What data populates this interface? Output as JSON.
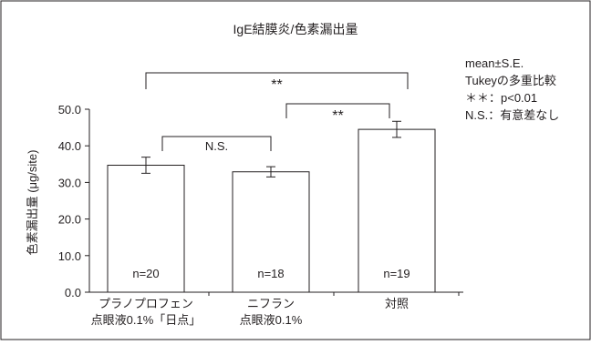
{
  "chart_data": {
    "type": "bar",
    "title": "IgE結膜炎/色素漏出量",
    "ylabel": "色素漏出量 (μg/site)",
    "xlabel": "",
    "ylim": [
      0,
      50
    ],
    "yticks": [
      0,
      10,
      20,
      30,
      40,
      50
    ],
    "ytick_labels": [
      "0.0",
      "10.0",
      "20.0",
      "30.0",
      "40.0",
      "50.0"
    ],
    "grid": false,
    "categories": [
      [
        "プラノプロフェン",
        "点眼液0.1%「日点」"
      ],
      [
        "ニフラン",
        "点眼液0.1%"
      ],
      [
        "対照"
      ]
    ],
    "values": [
      34.7,
      32.9,
      44.5
    ],
    "errors": [
      2.2,
      1.4,
      2.2
    ],
    "n_labels": [
      "n=20",
      "n=18",
      "n=19"
    ],
    "bar_fill": "#ffffff",
    "bar_stroke": "#231f20",
    "comparisons": [
      {
        "from": 0,
        "to": 1,
        "label": "N.S."
      },
      {
        "from": 1,
        "to": 2,
        "label": "**"
      },
      {
        "from": 0,
        "to": 2,
        "label": "**"
      }
    ],
    "legend_notes": [
      "mean±S.E.",
      "Tukeyの多重比較",
      "＊＊：p<0.01",
      "N.S.：有意差なし"
    ]
  }
}
